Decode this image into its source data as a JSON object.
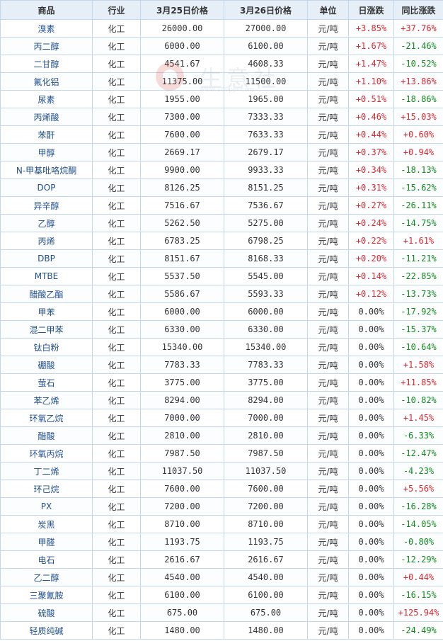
{
  "table": {
    "headers": [
      "商品",
      "行业",
      "3月25日价格",
      "3月26日价格",
      "单位",
      "日涨跌",
      "同比涨跌"
    ],
    "rows": [
      [
        "溴素",
        "化工",
        "26000.00",
        "27000.00",
        "元/吨",
        "+3.85%",
        "+37.76%"
      ],
      [
        "丙二醇",
        "化工",
        "6000.00",
        "6100.00",
        "元/吨",
        "+1.67%",
        "-21.46%"
      ],
      [
        "二甘醇",
        "化工",
        "4541.67",
        "4608.33",
        "元/吨",
        "+1.47%",
        "-10.52%"
      ],
      [
        "氟化铝",
        "化工",
        "11375.00",
        "11500.00",
        "元/吨",
        "+1.10%",
        "+13.86%"
      ],
      [
        "尿素",
        "化工",
        "1955.00",
        "1965.00",
        "元/吨",
        "+0.51%",
        "-18.86%"
      ],
      [
        "丙烯酸",
        "化工",
        "7300.00",
        "7333.33",
        "元/吨",
        "+0.46%",
        "+15.03%"
      ],
      [
        "苯酐",
        "化工",
        "7600.00",
        "7633.33",
        "元/吨",
        "+0.44%",
        "+0.60%"
      ],
      [
        "甲醇",
        "化工",
        "2669.17",
        "2679.17",
        "元/吨",
        "+0.37%",
        "+0.94%"
      ],
      [
        "N-甲基吡咯烷酮",
        "化工",
        "9900.00",
        "9933.33",
        "元/吨",
        "+0.34%",
        "-18.13%"
      ],
      [
        "DOP",
        "化工",
        "8126.25",
        "8151.25",
        "元/吨",
        "+0.31%",
        "-15.62%"
      ],
      [
        "异辛醇",
        "化工",
        "7516.67",
        "7536.67",
        "元/吨",
        "+0.27%",
        "-26.11%"
      ],
      [
        "乙醇",
        "化工",
        "5262.50",
        "5275.00",
        "元/吨",
        "+0.24%",
        "-14.75%"
      ],
      [
        "丙烯",
        "化工",
        "6783.25",
        "6798.25",
        "元/吨",
        "+0.22%",
        "+1.61%"
      ],
      [
        "DBP",
        "化工",
        "8151.67",
        "8168.33",
        "元/吨",
        "+0.20%",
        "-11.21%"
      ],
      [
        "MTBE",
        "化工",
        "5537.50",
        "5545.00",
        "元/吨",
        "+0.14%",
        "-22.85%"
      ],
      [
        "醋酸乙酯",
        "化工",
        "5586.67",
        "5593.33",
        "元/吨",
        "+0.12%",
        "-13.73%"
      ],
      [
        "甲苯",
        "化工",
        "6000.00",
        "6000.00",
        "元/吨",
        "0.00%",
        "-17.92%"
      ],
      [
        "混二甲苯",
        "化工",
        "6330.00",
        "6330.00",
        "元/吨",
        "0.00%",
        "-15.37%"
      ],
      [
        "钛白粉",
        "化工",
        "15340.00",
        "15340.00",
        "元/吨",
        "0.00%",
        "-10.64%"
      ],
      [
        "硼酸",
        "化工",
        "7783.33",
        "7783.33",
        "元/吨",
        "0.00%",
        "+1.58%"
      ],
      [
        "萤石",
        "化工",
        "3775.00",
        "3775.00",
        "元/吨",
        "0.00%",
        "+11.85%"
      ],
      [
        "苯乙烯",
        "化工",
        "8294.00",
        "8294.00",
        "元/吨",
        "0.00%",
        "-10.82%"
      ],
      [
        "环氧乙烷",
        "化工",
        "7000.00",
        "7000.00",
        "元/吨",
        "0.00%",
        "+1.45%"
      ],
      [
        "醋酸",
        "化工",
        "2810.00",
        "2810.00",
        "元/吨",
        "0.00%",
        "-6.33%"
      ],
      [
        "环氧丙烷",
        "化工",
        "7987.50",
        "7987.50",
        "元/吨",
        "0.00%",
        "-12.47%"
      ],
      [
        "丁二烯",
        "化工",
        "11037.50",
        "11037.50",
        "元/吨",
        "0.00%",
        "-4.23%"
      ],
      [
        "环己烷",
        "化工",
        "7600.00",
        "7600.00",
        "元/吨",
        "0.00%",
        "+5.56%"
      ],
      [
        "PX",
        "化工",
        "7200.00",
        "7200.00",
        "元/吨",
        "0.00%",
        "-16.28%"
      ],
      [
        "炭黑",
        "化工",
        "8710.00",
        "8710.00",
        "元/吨",
        "0.00%",
        "-14.05%"
      ],
      [
        "甲醛",
        "化工",
        "1193.75",
        "1193.75",
        "元/吨",
        "0.00%",
        "-0.80%"
      ],
      [
        "电石",
        "化工",
        "2616.67",
        "2616.67",
        "元/吨",
        "0.00%",
        "-12.29%"
      ],
      [
        "乙二醇",
        "化工",
        "4540.00",
        "4540.00",
        "元/吨",
        "0.00%",
        "+0.44%"
      ],
      [
        "三聚氰胺",
        "化工",
        "6100.00",
        "6100.00",
        "元/吨",
        "0.00%",
        "-16.15%"
      ],
      [
        "硫酸",
        "化工",
        "675.00",
        "675.00",
        "元/吨",
        "0.00%",
        "+125.94%"
      ],
      [
        "轻质纯碱",
        "化工",
        "1480.00",
        "1480.00",
        "元/吨",
        "0.00%",
        "-24.49%"
      ]
    ]
  },
  "watermark": {
    "text": "生意社",
    "url": "www.100ppi.com"
  },
  "colors": {
    "up": "#e0262e",
    "down": "#0f8a1e",
    "flat": "#333333",
    "name_link": "#1f4e8c",
    "header_bg": "#e6eff8",
    "border": "#c3d6ea"
  }
}
